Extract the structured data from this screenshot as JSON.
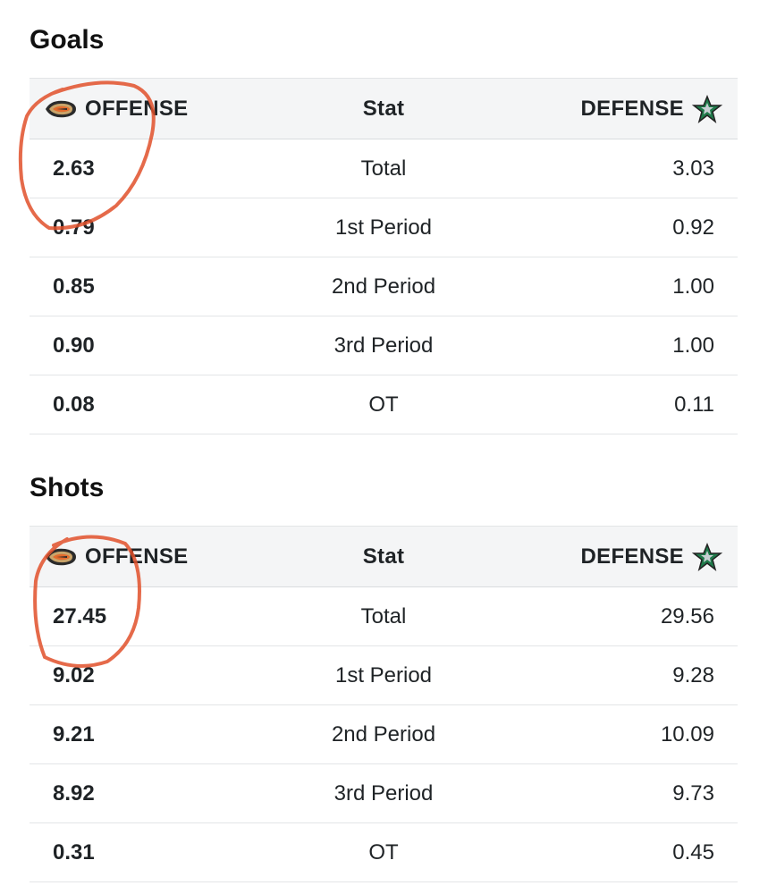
{
  "sections": [
    {
      "title": "Goals",
      "header": {
        "left": "OFFENSE",
        "mid": "Stat",
        "right": "DEFENSE"
      },
      "rows": [
        {
          "offense": "2.63",
          "stat": "Total",
          "defense": "3.03"
        },
        {
          "offense": "0.79",
          "stat": "1st Period",
          "defense": "0.92"
        },
        {
          "offense": "0.85",
          "stat": "2nd Period",
          "defense": "1.00"
        },
        {
          "offense": "0.90",
          "stat": "3rd Period",
          "defense": "1.00"
        },
        {
          "offense": "0.08",
          "stat": "OT",
          "defense": "0.11"
        }
      ]
    },
    {
      "title": "Shots",
      "header": {
        "left": "OFFENSE",
        "mid": "Stat",
        "right": "DEFENSE"
      },
      "rows": [
        {
          "offense": "27.45",
          "stat": "Total",
          "defense": "29.56"
        },
        {
          "offense": "9.02",
          "stat": "1st Period",
          "defense": "9.28"
        },
        {
          "offense": "9.21",
          "stat": "2nd Period",
          "defense": "10.09"
        },
        {
          "offense": "8.92",
          "stat": "3rd Period",
          "defense": "9.73"
        },
        {
          "offense": "0.31",
          "stat": "OT",
          "defense": "0.45"
        }
      ]
    }
  ],
  "icons": {
    "offense_logo": "ducks-logo-icon",
    "defense_logo": "stars-logo-icon"
  },
  "colors": {
    "annotation": "#e0502a",
    "header_bg": "#f4f5f6",
    "stars_green": "#1f7a4a"
  }
}
